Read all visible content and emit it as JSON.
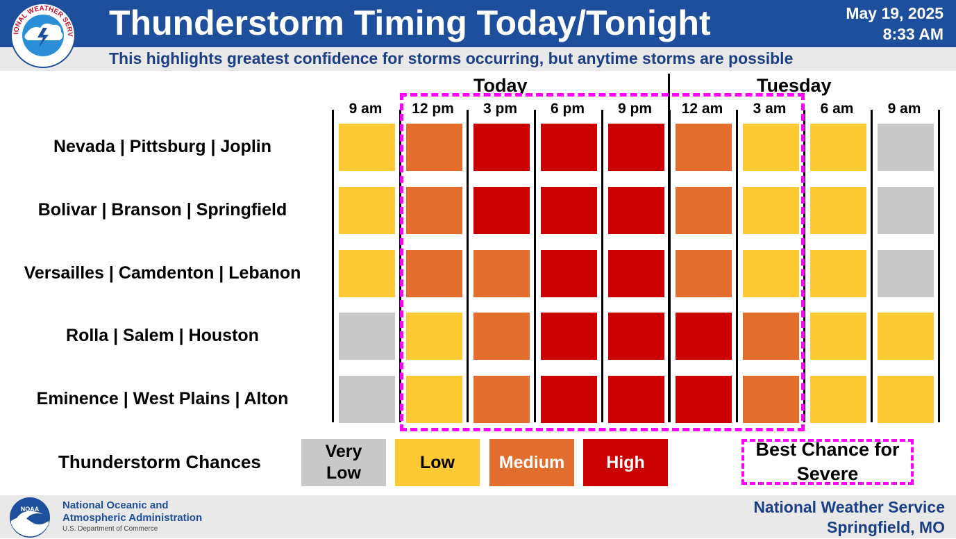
{
  "header": {
    "title": "Thunderstorm Timing Today/Tonight",
    "date": "May 19, 2025",
    "time": "8:33 AM",
    "subtitle": "This highlights greatest confidence for storms occurring, but anytime storms are possible"
  },
  "nws_logo": {
    "text": "NATIONAL WEATHER SERVICE"
  },
  "days": [
    "Today",
    "Tuesday"
  ],
  "times": [
    "9 am",
    "12 pm",
    "3 pm",
    "6 pm",
    "9 pm",
    "12 am",
    "3 am",
    "6 am",
    "9 am"
  ],
  "rows": [
    {
      "label": "Nevada | Pittsburg | Joplin",
      "levels": [
        "low",
        "medium",
        "high",
        "high",
        "high",
        "medium",
        "low",
        "low",
        "very_low"
      ]
    },
    {
      "label": "Bolivar | Branson | Springfield",
      "levels": [
        "low",
        "medium",
        "high",
        "high",
        "high",
        "medium",
        "low",
        "low",
        "very_low"
      ]
    },
    {
      "label": "Versailles | Camdenton | Lebanon",
      "levels": [
        "low",
        "medium",
        "medium",
        "high",
        "high",
        "medium",
        "low",
        "low",
        "very_low"
      ]
    },
    {
      "label": "Rolla | Salem | Houston",
      "levels": [
        "very_low",
        "low",
        "medium",
        "high",
        "high",
        "high",
        "medium",
        "low",
        "low"
      ]
    },
    {
      "label": "Eminence | West Plains | Alton",
      "levels": [
        "very_low",
        "low",
        "medium",
        "high",
        "high",
        "high",
        "medium",
        "low",
        "low"
      ]
    }
  ],
  "best_chance_window": {
    "start": "12 pm",
    "end": "3 am"
  },
  "legend": {
    "title": "Thunderstorm Chances",
    "items": [
      {
        "key": "very_low",
        "label": "Very Low",
        "color": "#c8c8c8",
        "text_color": "#000000"
      },
      {
        "key": "low",
        "label": "Low",
        "color": "#fdca33",
        "text_color": "#000000"
      },
      {
        "key": "medium",
        "label": "Medium",
        "color": "#e26d2c",
        "text_color": "#ffffff"
      },
      {
        "key": "high",
        "label": "High",
        "color": "#cc0000",
        "text_color": "#ffffff"
      }
    ],
    "severe_label": "Best Chance for Severe",
    "severe_color": "#ff00ff"
  },
  "footer": {
    "noaa_line1": "National Oceanic and",
    "noaa_line2": "Atmospheric Administration",
    "noaa_dept": "U.S. Department of Commerce",
    "office_line1": "National Weather Service",
    "office_line2": "Springfield, MO"
  }
}
